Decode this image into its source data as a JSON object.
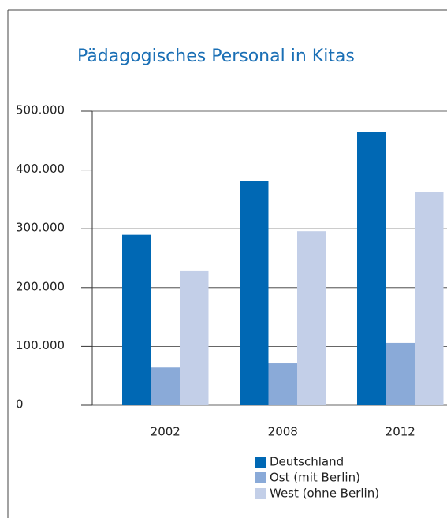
{
  "chart_data": {
    "type": "bar",
    "title": "Pädagogisches Personal in Kitas",
    "categories": [
      "2002",
      "2008",
      "2012"
    ],
    "series": [
      {
        "name": "Deutschland",
        "color": "#0068b4",
        "values": [
          290000,
          381000,
          464000
        ]
      },
      {
        "name": "Ost (mit Berlin)",
        "color": "#8aaad8",
        "values": [
          64000,
          71000,
          106000
        ]
      },
      {
        "name": "West (ohne Berlin)",
        "color": "#c3cfe8",
        "values": [
          228000,
          296000,
          362000
        ]
      }
    ],
    "ylim": [
      0,
      500000
    ],
    "yticks": [
      0,
      {
        "value": 100000,
        "label": "100.000"
      },
      {
        "value": 200000,
        "label": "200.000"
      },
      {
        "value": 300000,
        "label": "300.000"
      },
      {
        "value": 400000,
        "label": "400.000"
      },
      {
        "value": 500000,
        "label": "500.000"
      }
    ],
    "grid": true
  }
}
